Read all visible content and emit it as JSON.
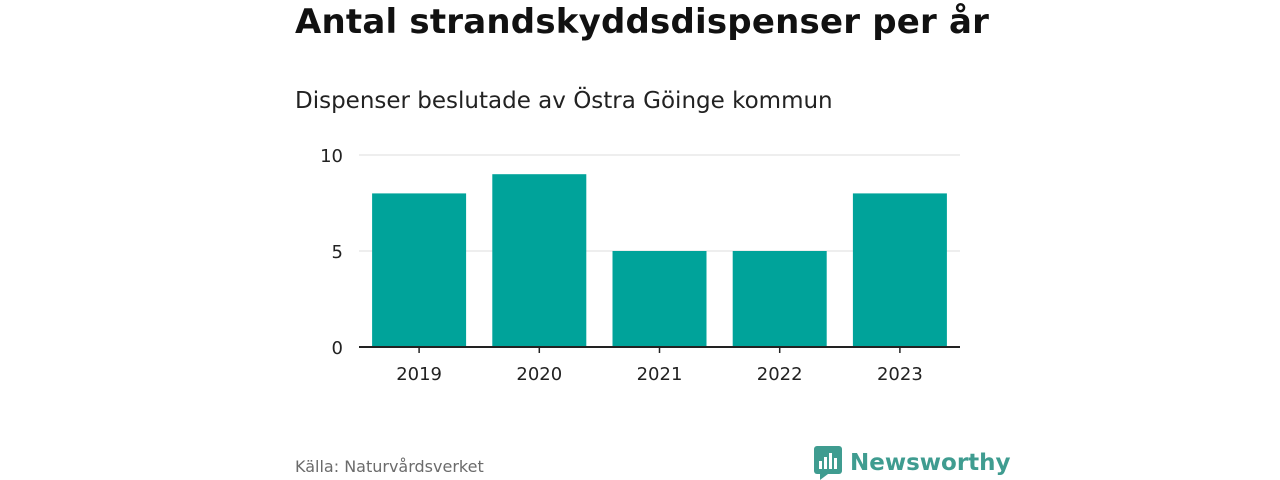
{
  "header": {
    "title": "Antal strandskyddsdispenser per år",
    "subtitle": "Dispenser beslutade av Östra Göinge kommun"
  },
  "footer": {
    "source": "Källa: Naturvårdsverket",
    "brand": "Newsworthy"
  },
  "colors": {
    "bar": "#00a39a",
    "grid": "#dddddd",
    "axis": "#222222",
    "brand": "#3f9c90"
  },
  "chart_data": {
    "type": "bar",
    "title": "Antal strandskyddsdispenser per år",
    "subtitle": "Dispenser beslutade av Östra Göinge kommun",
    "categories": [
      "2019",
      "2020",
      "2021",
      "2022",
      "2023"
    ],
    "values": [
      8,
      9,
      5,
      5,
      8
    ],
    "xlabel": "",
    "ylabel": "",
    "ylim": [
      0,
      10
    ],
    "yticks": [
      0,
      5,
      10
    ],
    "grid": true,
    "legend": "none"
  }
}
